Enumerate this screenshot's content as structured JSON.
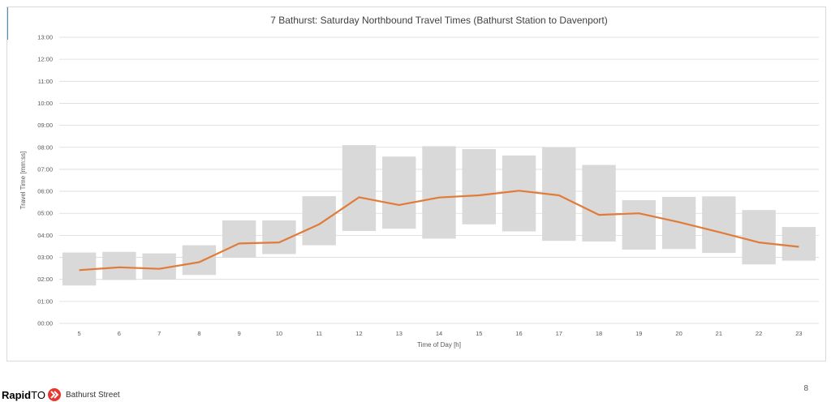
{
  "chart_data": {
    "type": "floating-bar-with-line",
    "title": "7 Bathurst: Saturday Northbound Travel Times (Bathurst Station to Davenport)",
    "xlabel": "Time of Day [h]",
    "ylabel": "Travel Time [mm:ss]",
    "categories": [
      "5",
      "6",
      "7",
      "8",
      "9",
      "10",
      "11",
      "12",
      "13",
      "14",
      "15",
      "16",
      "17",
      "18",
      "19",
      "20",
      "21",
      "22",
      "23"
    ],
    "y_ticks": [
      "00:00",
      "01:00",
      "02:00",
      "03:00",
      "04:00",
      "05:00",
      "06:00",
      "07:00",
      "08:00",
      "09:00",
      "10:00",
      "11:00",
      "12:00",
      "13:00"
    ],
    "ylim_minutes": [
      0,
      13
    ],
    "range_low_minutes": [
      1.72,
      1.97,
      2.0,
      2.2,
      3.0,
      3.15,
      3.55,
      4.2,
      4.3,
      3.85,
      4.5,
      4.18,
      3.75,
      3.72,
      3.35,
      3.38,
      3.2,
      2.68,
      2.85
    ],
    "range_high_minutes": [
      3.22,
      3.25,
      3.18,
      3.55,
      4.68,
      4.68,
      5.78,
      8.1,
      7.58,
      8.05,
      7.92,
      7.63,
      8.0,
      7.2,
      5.6,
      5.75,
      5.77,
      5.15,
      4.38
    ],
    "median_minutes": [
      2.42,
      2.55,
      2.48,
      2.78,
      3.63,
      3.68,
      4.5,
      5.73,
      5.38,
      5.72,
      5.82,
      6.03,
      5.82,
      4.93,
      5.0,
      4.6,
      4.15,
      3.68,
      3.48
    ],
    "grid": true,
    "colors": {
      "bar": "#d9d9d9",
      "line": "#e07b39",
      "grid": "#d9d9d9"
    }
  },
  "footer": {
    "brand_bold": "Rapid",
    "brand_light": "TO",
    "subtitle": "Bathurst Street",
    "page_number": "8"
  }
}
